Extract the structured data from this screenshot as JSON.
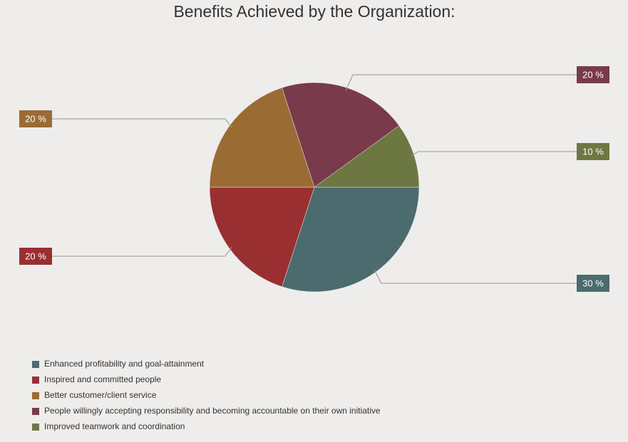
{
  "chart_data": {
    "type": "pie",
    "title": "Benefits Achieved by the Organization:",
    "categories": [
      "Enhanced profitability and goal-attainment",
      "Inspired and committed people",
      "Better customer/client service",
      "People willingly accepting responsibility and becoming accountable on their own initiative",
      "Improved teamwork and coordination"
    ],
    "values": [
      30,
      20,
      20,
      20,
      10
    ],
    "value_labels": [
      "30 %",
      "20 %",
      "20 %",
      "20 %",
      "10 %"
    ],
    "colors": [
      "#4b6b6f",
      "#9a2f31",
      "#9a6c34",
      "#793a4b",
      "#6d7741"
    ]
  }
}
